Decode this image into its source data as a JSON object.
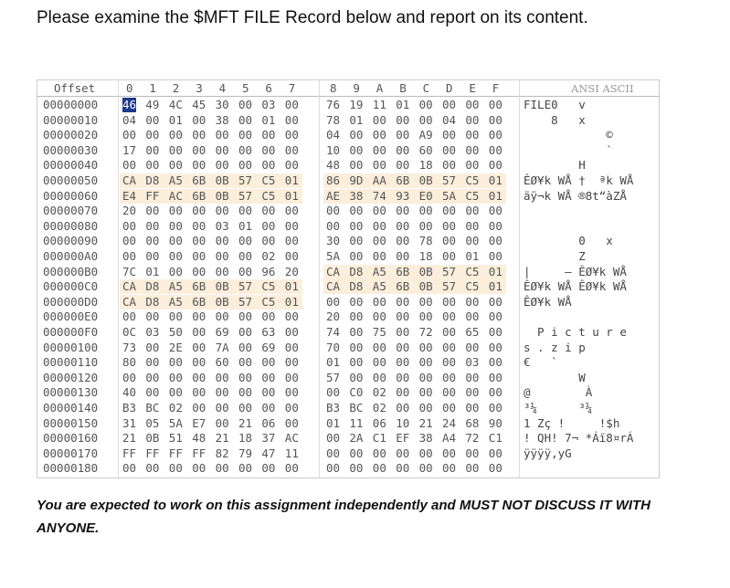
{
  "title": "Please examine the $MFT FILE Record below and report on its content.",
  "hex_view": {
    "header": {
      "offset": "Offset",
      "columns": [
        "0",
        "1",
        "2",
        "3",
        "4",
        "5",
        "6",
        "7",
        "8",
        "9",
        "A",
        "B",
        "C",
        "D",
        "E",
        "F"
      ],
      "ascii": "ANSI ASCII"
    },
    "rows": [
      {
        "offset": "00000000",
        "bytes": [
          "46",
          "49",
          "4C",
          "45",
          "30",
          "00",
          "03",
          "00",
          "76",
          "19",
          "11",
          "01",
          "00",
          "00",
          "00",
          "00"
        ],
        "ascii": "FILE0   v"
      },
      {
        "offset": "00000010",
        "bytes": [
          "04",
          "00",
          "01",
          "00",
          "38",
          "00",
          "01",
          "00",
          "78",
          "01",
          "00",
          "00",
          "00",
          "04",
          "00",
          "00"
        ],
        "ascii": "    8   x"
      },
      {
        "offset": "00000020",
        "bytes": [
          "00",
          "00",
          "00",
          "00",
          "00",
          "00",
          "00",
          "00",
          "04",
          "00",
          "00",
          "00",
          "A9",
          "00",
          "00",
          "00"
        ],
        "ascii": "            ©"
      },
      {
        "offset": "00000030",
        "bytes": [
          "17",
          "00",
          "00",
          "00",
          "00",
          "00",
          "00",
          "00",
          "10",
          "00",
          "00",
          "00",
          "60",
          "00",
          "00",
          "00"
        ],
        "ascii": "            `"
      },
      {
        "offset": "00000040",
        "bytes": [
          "00",
          "00",
          "00",
          "00",
          "00",
          "00",
          "00",
          "00",
          "48",
          "00",
          "00",
          "00",
          "18",
          "00",
          "00",
          "00"
        ],
        "ascii": "        H"
      },
      {
        "offset": "00000050",
        "bytes": [
          "CA",
          "D8",
          "A5",
          "6B",
          "0B",
          "57",
          "C5",
          "01",
          "86",
          "9D",
          "AA",
          "6B",
          "0B",
          "57",
          "C5",
          "01"
        ],
        "ascii": "ÊØ¥k WÅ †  ªk WÅ"
      },
      {
        "offset": "00000060",
        "bytes": [
          "E4",
          "FF",
          "AC",
          "6B",
          "0B",
          "57",
          "C5",
          "01",
          "AE",
          "38",
          "74",
          "93",
          "E0",
          "5A",
          "C5",
          "01"
        ],
        "ascii": "äÿ¬k WÅ ®8t“àZÅ"
      },
      {
        "offset": "00000070",
        "bytes": [
          "20",
          "00",
          "00",
          "00",
          "00",
          "00",
          "00",
          "00",
          "00",
          "00",
          "00",
          "00",
          "00",
          "00",
          "00",
          "00"
        ],
        "ascii": ""
      },
      {
        "offset": "00000080",
        "bytes": [
          "00",
          "00",
          "00",
          "00",
          "03",
          "01",
          "00",
          "00",
          "00",
          "00",
          "00",
          "00",
          "00",
          "00",
          "00",
          "00"
        ],
        "ascii": ""
      },
      {
        "offset": "00000090",
        "bytes": [
          "00",
          "00",
          "00",
          "00",
          "00",
          "00",
          "00",
          "00",
          "30",
          "00",
          "00",
          "00",
          "78",
          "00",
          "00",
          "00"
        ],
        "ascii": "        0   x"
      },
      {
        "offset": "000000A0",
        "bytes": [
          "00",
          "00",
          "00",
          "00",
          "00",
          "00",
          "02",
          "00",
          "5A",
          "00",
          "00",
          "00",
          "18",
          "00",
          "01",
          "00"
        ],
        "ascii": "        Z"
      },
      {
        "offset": "000000B0",
        "bytes": [
          "7C",
          "01",
          "00",
          "00",
          "00",
          "00",
          "96",
          "20",
          "CA",
          "D8",
          "A5",
          "6B",
          "0B",
          "57",
          "C5",
          "01"
        ],
        "ascii": "|     – ÊØ¥k WÅ"
      },
      {
        "offset": "000000C0",
        "bytes": [
          "CA",
          "D8",
          "A5",
          "6B",
          "0B",
          "57",
          "C5",
          "01",
          "CA",
          "D8",
          "A5",
          "6B",
          "0B",
          "57",
          "C5",
          "01"
        ],
        "ascii": "ÊØ¥k WÅ ÊØ¥k WÅ"
      },
      {
        "offset": "000000D0",
        "bytes": [
          "CA",
          "D8",
          "A5",
          "6B",
          "0B",
          "57",
          "C5",
          "01",
          "00",
          "00",
          "00",
          "00",
          "00",
          "00",
          "00",
          "00"
        ],
        "ascii": "ÊØ¥k WÅ"
      },
      {
        "offset": "000000E0",
        "bytes": [
          "00",
          "00",
          "00",
          "00",
          "00",
          "00",
          "00",
          "00",
          "20",
          "00",
          "00",
          "00",
          "00",
          "00",
          "00",
          "00"
        ],
        "ascii": ""
      },
      {
        "offset": "000000F0",
        "bytes": [
          "0C",
          "03",
          "50",
          "00",
          "69",
          "00",
          "63",
          "00",
          "74",
          "00",
          "75",
          "00",
          "72",
          "00",
          "65",
          "00"
        ],
        "ascii": "  P i c t u r e"
      },
      {
        "offset": "00000100",
        "bytes": [
          "73",
          "00",
          "2E",
          "00",
          "7A",
          "00",
          "69",
          "00",
          "70",
          "00",
          "00",
          "00",
          "00",
          "00",
          "00",
          "00"
        ],
        "ascii": "s . z i p"
      },
      {
        "offset": "00000110",
        "bytes": [
          "80",
          "00",
          "00",
          "00",
          "60",
          "00",
          "00",
          "00",
          "01",
          "00",
          "00",
          "00",
          "00",
          "00",
          "03",
          "00"
        ],
        "ascii": "€   `"
      },
      {
        "offset": "00000120",
        "bytes": [
          "00",
          "00",
          "00",
          "00",
          "00",
          "00",
          "00",
          "00",
          "57",
          "00",
          "00",
          "00",
          "00",
          "00",
          "00",
          "00"
        ],
        "ascii": "        W"
      },
      {
        "offset": "00000130",
        "bytes": [
          "40",
          "00",
          "00",
          "00",
          "00",
          "00",
          "00",
          "00",
          "00",
          "C0",
          "02",
          "00",
          "00",
          "00",
          "00",
          "00"
        ],
        "ascii": "@        À"
      },
      {
        "offset": "00000140",
        "bytes": [
          "B3",
          "BC",
          "02",
          "00",
          "00",
          "00",
          "00",
          "00",
          "B3",
          "BC",
          "02",
          "00",
          "00",
          "00",
          "00",
          "00"
        ],
        "ascii": "³¼      ³¼"
      },
      {
        "offset": "00000150",
        "bytes": [
          "31",
          "05",
          "5A",
          "E7",
          "00",
          "21",
          "06",
          "00",
          "01",
          "11",
          "06",
          "10",
          "21",
          "24",
          "68",
          "90"
        ],
        "ascii": "1 Zç !     !$h"
      },
      {
        "offset": "00000160",
        "bytes": [
          "21",
          "0B",
          "51",
          "48",
          "21",
          "18",
          "37",
          "AC",
          "00",
          "2A",
          "C1",
          "EF",
          "38",
          "A4",
          "72",
          "C1"
        ],
        "ascii": "! QH! 7¬ *Áï8¤rÁ"
      },
      {
        "offset": "00000170",
        "bytes": [
          "FF",
          "FF",
          "FF",
          "FF",
          "82",
          "79",
          "47",
          "11",
          "00",
          "00",
          "00",
          "00",
          "00",
          "00",
          "00",
          "00"
        ],
        "ascii": "ÿÿÿÿ‚yG"
      },
      {
        "offset": "00000180",
        "bytes": [
          "00",
          "00",
          "00",
          "00",
          "00",
          "00",
          "00",
          "00",
          "00",
          "00",
          "00",
          "00",
          "00",
          "00",
          "00",
          "00"
        ],
        "ascii": ""
      }
    ]
  },
  "footer": "You are expected to work on this assignment independently and MUST NOT DISCUSS IT WITH ANYONE."
}
